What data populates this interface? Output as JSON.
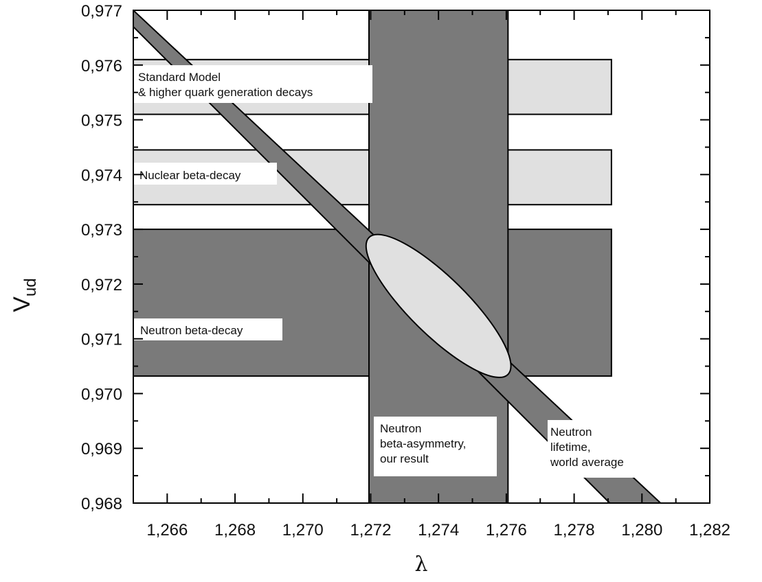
{
  "chart_data": {
    "type": "area",
    "xlabel": "λ",
    "ylabel": {
      "main": "V",
      "sub": "ud"
    },
    "xlim": [
      1.265,
      1.282
    ],
    "ylim": [
      0.968,
      0.977
    ],
    "x_ticks": [
      {
        "value": 1.266,
        "label": "1,266"
      },
      {
        "value": 1.268,
        "label": "1,268"
      },
      {
        "value": 1.27,
        "label": "1,270"
      },
      {
        "value": 1.272,
        "label": "1,272"
      },
      {
        "value": 1.274,
        "label": "1,274"
      },
      {
        "value": 1.276,
        "label": "1,276"
      },
      {
        "value": 1.278,
        "label": "1,278"
      },
      {
        "value": 1.28,
        "label": "1,280"
      },
      {
        "value": 1.282,
        "label": "1,282"
      }
    ],
    "y_ticks": [
      {
        "value": 0.968,
        "label": "0,968"
      },
      {
        "value": 0.969,
        "label": "0,969"
      },
      {
        "value": 0.97,
        "label": "0,970"
      },
      {
        "value": 0.971,
        "label": "0,971"
      },
      {
        "value": 0.972,
        "label": "0,972"
      },
      {
        "value": 0.973,
        "label": "0,973"
      },
      {
        "value": 0.974,
        "label": "0,974"
      },
      {
        "value": 0.975,
        "label": "0,975"
      },
      {
        "value": 0.976,
        "label": "0,976"
      },
      {
        "value": 0.977,
        "label": "0,977"
      }
    ],
    "horizontal_bands": [
      {
        "id": "standard-model",
        "lines": [
          "Standard Model",
          "& higher quark generation decays"
        ],
        "x_range": [
          1.265,
          1.2791
        ],
        "y_range": [
          0.9751,
          0.9761
        ],
        "color": "#e0e0e0"
      },
      {
        "id": "nuclear-beta-decay",
        "lines": [
          "Nuclear beta-decay"
        ],
        "x_range": [
          1.265,
          1.2791
        ],
        "y_range": [
          0.97345,
          0.97445
        ],
        "color": "#e0e0e0"
      },
      {
        "id": "neutron-beta-decay",
        "lines": [
          "Neutron beta-decay"
        ],
        "x_range": [
          1.265,
          1.2791
        ],
        "y_range": [
          0.97032,
          0.973
        ],
        "color": "#7a7a7a"
      }
    ],
    "vertical_band": {
      "id": "neutron-beta-asymmetry",
      "lines": [
        "Neutron",
        "beta-asymmetry,",
        "our result"
      ],
      "x_range": [
        1.27195,
        1.27605
      ],
      "color": "#7a7a7a"
    },
    "diagonal_band": {
      "id": "neutron-lifetime",
      "lines": [
        "Neutron",
        "lifetime,",
        "world average"
      ],
      "upper_line": [
        [
          1.265,
          0.977
        ],
        [
          1.28055,
          0.968
        ]
      ],
      "lower_line": [
        [
          1.265,
          0.9767
        ],
        [
          1.27905,
          0.968
        ]
      ],
      "color": "#7a7a7a"
    },
    "ellipse": {
      "id": "combined-result",
      "center": [
        1.274,
        0.97165
      ],
      "endpoints": [
        [
          1.27195,
          0.97285
        ],
        [
          1.27605,
          0.97035
        ]
      ],
      "color": "#e0e0e0"
    }
  }
}
